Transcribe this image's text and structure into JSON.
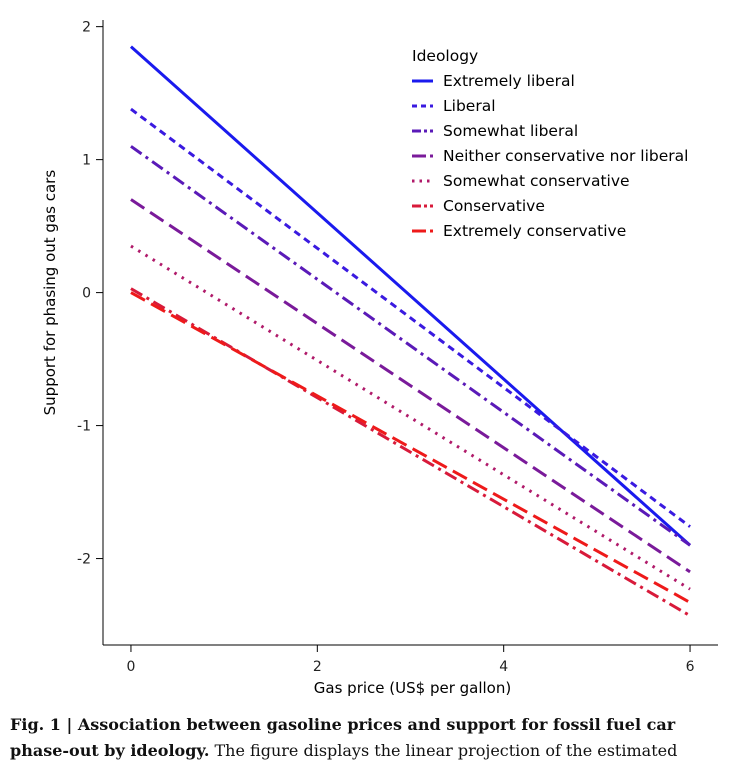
{
  "chart_data": {
    "type": "line",
    "xlabel": "Gas price (US$ per gallon)",
    "ylabel": "Support for phasing out gas cars",
    "xlim": [
      -0.3,
      6.3
    ],
    "ylim": [
      -2.65,
      2.05
    ],
    "xticks": [
      "0",
      "2",
      "4",
      "6"
    ],
    "yticks": [
      "2",
      "1",
      "0",
      "-1",
      "-2"
    ],
    "legend_title": "Ideology",
    "legend_position": "top-right",
    "grid": false,
    "series": [
      {
        "name": "Extremely liberal",
        "x": [
          0,
          6
        ],
        "y": [
          1.85,
          -1.9
        ],
        "color": "#1a1aee",
        "dash": "solid"
      },
      {
        "name": "Liberal",
        "x": [
          0,
          6
        ],
        "y": [
          1.38,
          -1.76
        ],
        "color": "#3a1ae0",
        "dash": "short-dash"
      },
      {
        "name": "Somewhat liberal",
        "x": [
          0,
          6
        ],
        "y": [
          1.1,
          -1.9
        ],
        "color": "#5a1ab8",
        "dash": "dash-dot"
      },
      {
        "name": "Neither conservative nor liberal",
        "x": [
          0,
          6
        ],
        "y": [
          0.7,
          -2.1
        ],
        "color": "#7a1a9a",
        "dash": "long-dash"
      },
      {
        "name": "Somewhat conservative",
        "x": [
          0,
          6
        ],
        "y": [
          0.35,
          -2.23
        ],
        "color": "#b01a6a",
        "dash": "dotted"
      },
      {
        "name": "Conservative",
        "x": [
          0,
          6
        ],
        "y": [
          0.03,
          -2.43
        ],
        "color": "#d81a3a",
        "dash": "dash-dot"
      },
      {
        "name": "Extremely conservative",
        "x": [
          0,
          6
        ],
        "y": [
          0.0,
          -2.33
        ],
        "color": "#ee1a1a",
        "dash": "long-dash"
      }
    ]
  },
  "caption": {
    "bold": "Fig. 1 | Association between gasoline prices and support for fossil fuel car phase-out by ideology.",
    "normal": " The figure displays the linear projection of the estimated"
  }
}
